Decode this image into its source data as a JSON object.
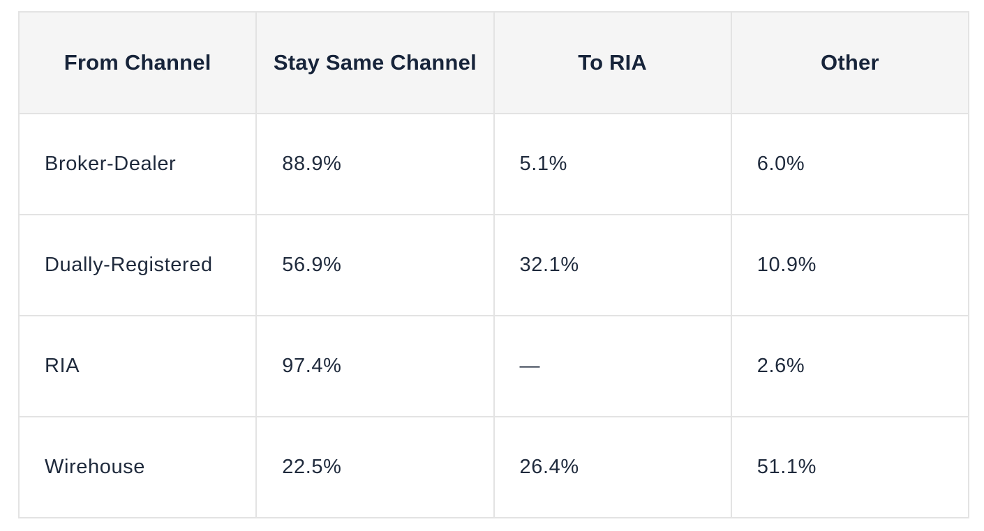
{
  "table": {
    "headers": [
      "From Channel",
      "Stay Same Channel",
      "To RIA",
      "Other"
    ],
    "rows": [
      [
        "Broker-Dealer",
        "88.9%",
        "5.1%",
        "6.0%"
      ],
      [
        "Dually-Registered",
        "56.9%",
        "32.1%",
        "10.9%"
      ],
      [
        "RIA",
        "97.4%",
        "—",
        "2.6%"
      ],
      [
        "Wirehouse",
        "22.5%",
        "26.4%",
        "51.1%"
      ]
    ]
  },
  "colors": {
    "header_bg": "#f5f5f5",
    "header_text": "#17243a",
    "cell_text": "#1f2a3c",
    "border": "#e3e3e3"
  }
}
